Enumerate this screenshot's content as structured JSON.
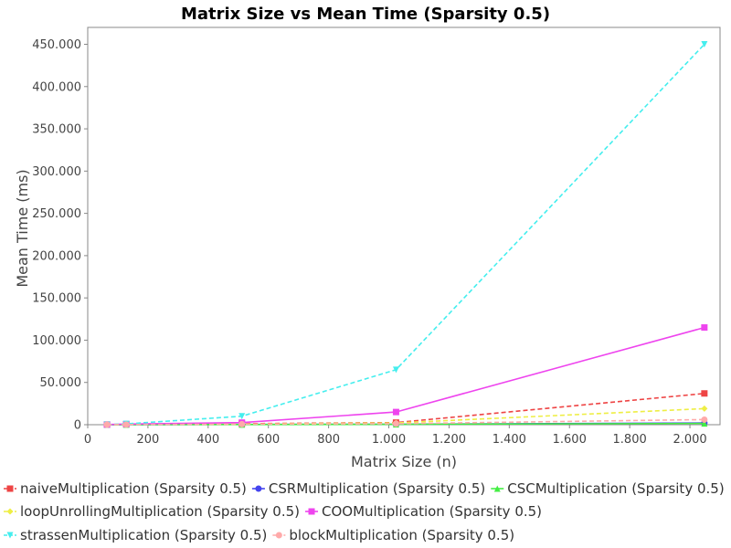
{
  "chart_data": {
    "type": "line",
    "title": "Matrix Size vs Mean Time (Sparsity 0.5)",
    "xlabel": "Matrix Size (n)",
    "ylabel": "Mean Time (ms)",
    "xlim": [
      0,
      2100
    ],
    "ylim": [
      0,
      470000
    ],
    "x_ticks": [
      0,
      200,
      400,
      600,
      800,
      1000,
      1200,
      1400,
      1600,
      1800,
      2000
    ],
    "x_tick_labels": [
      "0",
      "200",
      "400",
      "600",
      "800",
      "1.000",
      "1.200",
      "1.400",
      "1.600",
      "1.800",
      "2.000"
    ],
    "y_ticks": [
      0,
      50000,
      100000,
      150000,
      200000,
      250000,
      300000,
      350000,
      400000,
      450000
    ],
    "y_tick_labels": [
      "0",
      "50.000",
      "100.000",
      "150.000",
      "200.000",
      "250.000",
      "300.000",
      "350.000",
      "400.000",
      "450.000"
    ],
    "grid": false,
    "legend_position": "bottom",
    "x": [
      64,
      128,
      512,
      1024,
      2048
    ],
    "series": [
      {
        "name": "naiveMultiplication (Sparsity 0.5)",
        "color": "#ee4444",
        "dash": true,
        "marker": "square",
        "values": [
          100,
          500,
          1200,
          2500,
          37000
        ]
      },
      {
        "name": "CSRMultiplication (Sparsity 0.5)",
        "color": "#4444ee",
        "dash": false,
        "marker": "circle",
        "values": [
          50,
          100,
          300,
          500,
          2000
        ]
      },
      {
        "name": "CSCMultiplication (Sparsity 0.5)",
        "color": "#44ee44",
        "dash": false,
        "marker": "triangle-up",
        "values": [
          50,
          100,
          200,
          400,
          1500
        ]
      },
      {
        "name": "loopUnrollingMultiplication (Sparsity 0.5)",
        "color": "#eeee44",
        "dash": true,
        "marker": "diamond",
        "values": [
          100,
          300,
          800,
          2000,
          19000
        ]
      },
      {
        "name": "COOMultiplication (Sparsity 0.5)",
        "color": "#ee44ee",
        "dash": false,
        "marker": "square",
        "values": [
          200,
          800,
          2500,
          15000,
          115000
        ]
      },
      {
        "name": "strassenMultiplication (Sparsity 0.5)",
        "color": "#44eeee",
        "dash": true,
        "marker": "triangle-down",
        "values": [
          200,
          1000,
          10000,
          65000,
          450000
        ]
      },
      {
        "name": "blockMultiplication (Sparsity 0.5)",
        "color": "#ffaaaa",
        "dash": true,
        "marker": "circle",
        "values": [
          100,
          200,
          700,
          1200,
          6000
        ]
      }
    ]
  }
}
